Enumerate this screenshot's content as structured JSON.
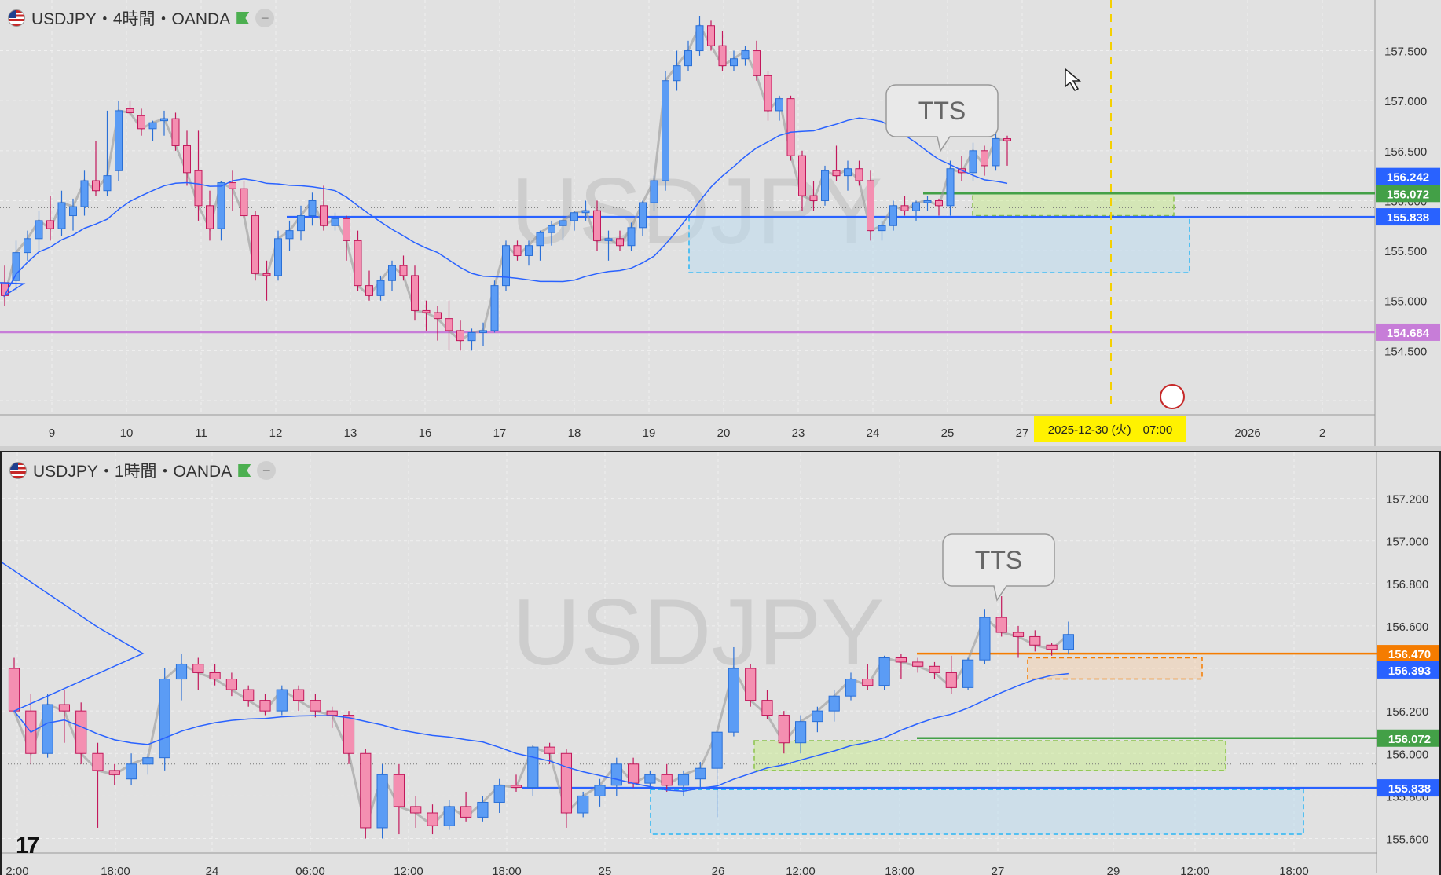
{
  "top": {
    "title": "USDJPY・4時間・OANDA",
    "watermark": "USDJPY",
    "callout": "TTS",
    "crosshair_label": "2025-12-30 (火)　07:00",
    "y_ticks": [
      "157.500",
      "157.000",
      "156.500",
      "156.000",
      "155.500",
      "155.000",
      "154.500"
    ],
    "x_ticks": [
      "9",
      "10",
      "11",
      "12",
      "13",
      "16",
      "17",
      "18",
      "19",
      "20",
      "23",
      "24",
      "25",
      "27",
      "2026",
      "2"
    ],
    "price_labels": [
      {
        "value": "156.242",
        "color": "#2962ff"
      },
      {
        "value": "156.072",
        "color": "#43a047"
      },
      {
        "value": "155.838",
        "color": "#2962ff"
      },
      {
        "value": "154.684",
        "color": "#c77dd8"
      }
    ]
  },
  "bottom": {
    "title": "USDJPY・1時間・OANDA",
    "watermark": "USDJPY",
    "callout": "TTS",
    "y_ticks": [
      "157.200",
      "157.000",
      "156.800",
      "156.600",
      "156.400",
      "156.200",
      "156.000",
      "155.800",
      "155.600"
    ],
    "x_ticks": [
      "2:00",
      "18:00",
      "24",
      "06:00",
      "12:00",
      "18:00",
      "25",
      "26",
      "12:00",
      "18:00",
      "27",
      "29",
      "12:00",
      "18:00"
    ],
    "price_labels": [
      {
        "value": "156.470",
        "color": "#f57c00"
      },
      {
        "value": "156.393",
        "color": "#2962ff"
      },
      {
        "value": "156.072",
        "color": "#43a047"
      },
      {
        "value": "155.838",
        "color": "#2962ff"
      }
    ]
  },
  "chart_data": [
    {
      "type": "candlestick",
      "title": "USDJPY・4時間・OANDA",
      "ylim": [
        154.0,
        157.85
      ],
      "horizontal_lines": [
        {
          "price": 156.072,
          "color": "#43a047"
        },
        {
          "price": 155.838,
          "color": "#2962ff"
        },
        {
          "price": 154.684,
          "color": "#c77dd8"
        }
      ],
      "ohlc": [
        [
          155.18,
          155.35,
          154.95,
          155.05
        ],
        [
          155.2,
          155.6,
          155.1,
          155.48
        ],
        [
          155.48,
          155.7,
          155.4,
          155.62
        ],
        [
          155.62,
          155.9,
          155.5,
          155.8
        ],
        [
          155.8,
          156.05,
          155.6,
          155.72
        ],
        [
          155.72,
          156.1,
          155.65,
          155.98
        ],
        [
          155.85,
          156.02,
          155.7,
          155.94
        ],
        [
          155.94,
          156.3,
          155.85,
          156.2
        ],
        [
          156.2,
          156.6,
          156.05,
          156.1
        ],
        [
          156.1,
          156.9,
          156.05,
          156.25
        ],
        [
          156.3,
          157.0,
          156.2,
          156.9
        ],
        [
          156.92,
          157.0,
          156.85,
          156.88
        ],
        [
          156.85,
          156.92,
          156.65,
          156.72
        ],
        [
          156.72,
          156.8,
          156.6,
          156.78
        ],
        [
          156.8,
          156.9,
          156.65,
          156.82
        ],
        [
          156.82,
          156.88,
          156.5,
          156.55
        ],
        [
          156.55,
          156.7,
          156.15,
          156.28
        ],
        [
          156.3,
          156.7,
          155.8,
          155.95
        ],
        [
          155.95,
          156.1,
          155.6,
          155.72
        ],
        [
          155.72,
          156.2,
          155.6,
          156.18
        ],
        [
          156.18,
          156.3,
          155.9,
          156.12
        ],
        [
          156.12,
          156.2,
          155.82,
          155.85
        ],
        [
          155.85,
          155.9,
          155.2,
          155.27
        ],
        [
          155.27,
          155.4,
          155.0,
          155.25
        ],
        [
          155.25,
          155.7,
          155.2,
          155.62
        ],
        [
          155.62,
          155.8,
          155.5,
          155.7
        ],
        [
          155.7,
          155.95,
          155.6,
          155.85
        ],
        [
          155.85,
          156.08,
          155.75,
          156.0
        ],
        [
          155.95,
          156.15,
          155.7,
          155.75
        ],
        [
          155.75,
          155.88,
          155.7,
          155.82
        ],
        [
          155.82,
          155.85,
          155.4,
          155.6
        ],
        [
          155.6,
          155.7,
          155.1,
          155.15
        ],
        [
          155.15,
          155.3,
          155.0,
          155.05
        ],
        [
          155.05,
          155.25,
          155.0,
          155.2
        ],
        [
          155.2,
          155.4,
          155.1,
          155.35
        ],
        [
          155.35,
          155.45,
          155.2,
          155.25
        ],
        [
          155.25,
          155.35,
          154.8,
          154.9
        ],
        [
          154.9,
          155.0,
          154.7,
          154.88
        ],
        [
          154.88,
          154.95,
          154.6,
          154.82
        ],
        [
          154.82,
          155.0,
          154.5,
          154.7
        ],
        [
          154.7,
          154.8,
          154.5,
          154.6
        ],
        [
          154.6,
          154.72,
          154.5,
          154.68
        ],
        [
          154.68,
          154.78,
          154.55,
          154.7
        ],
        [
          154.7,
          155.2,
          154.68,
          155.15
        ],
        [
          155.15,
          155.6,
          155.1,
          155.55
        ],
        [
          155.55,
          155.6,
          155.4,
          155.45
        ],
        [
          155.45,
          155.6,
          155.35,
          155.55
        ],
        [
          155.55,
          155.7,
          155.4,
          155.68
        ],
        [
          155.68,
          155.8,
          155.55,
          155.75
        ],
        [
          155.75,
          155.85,
          155.6,
          155.8
        ],
        [
          155.8,
          155.9,
          155.7,
          155.88
        ],
        [
          155.88,
          156.0,
          155.8,
          155.9
        ],
        [
          155.9,
          156.0,
          155.5,
          155.6
        ],
        [
          155.6,
          155.7,
          155.4,
          155.62
        ],
        [
          155.62,
          155.7,
          155.5,
          155.55
        ],
        [
          155.55,
          155.78,
          155.5,
          155.73
        ],
        [
          155.73,
          156.0,
          155.65,
          155.98
        ],
        [
          155.98,
          156.25,
          155.9,
          156.2
        ],
        [
          156.2,
          157.3,
          156.1,
          157.2
        ],
        [
          157.2,
          157.5,
          157.1,
          157.35
        ],
        [
          157.35,
          157.6,
          157.3,
          157.5
        ],
        [
          157.5,
          157.85,
          157.45,
          157.75
        ],
        [
          157.75,
          157.8,
          157.5,
          157.55
        ],
        [
          157.55,
          157.7,
          157.3,
          157.35
        ],
        [
          157.35,
          157.5,
          157.3,
          157.42
        ],
        [
          157.42,
          157.55,
          157.35,
          157.5
        ],
        [
          157.5,
          157.6,
          157.2,
          157.25
        ],
        [
          157.25,
          157.3,
          156.8,
          156.9
        ],
        [
          156.9,
          157.05,
          156.8,
          157.02
        ],
        [
          157.02,
          157.05,
          156.4,
          156.45
        ],
        [
          156.45,
          156.5,
          155.9,
          156.05
        ],
        [
          156.05,
          156.2,
          155.9,
          156.0
        ],
        [
          156.0,
          156.35,
          155.95,
          156.3
        ],
        [
          156.3,
          156.55,
          156.2,
          156.25
        ],
        [
          156.25,
          156.4,
          156.1,
          156.32
        ],
        [
          156.32,
          156.4,
          156.15,
          156.2
        ],
        [
          156.2,
          156.3,
          155.6,
          155.7
        ],
        [
          155.7,
          155.8,
          155.6,
          155.75
        ],
        [
          155.75,
          156.0,
          155.7,
          155.95
        ],
        [
          155.95,
          156.05,
          155.85,
          155.9
        ],
        [
          155.9,
          156.0,
          155.8,
          155.98
        ],
        [
          155.98,
          156.05,
          155.9,
          156.0
        ],
        [
          156.0,
          156.02,
          155.85,
          155.95
        ],
        [
          155.95,
          156.4,
          155.85,
          156.32
        ],
        [
          156.32,
          156.45,
          156.2,
          156.28
        ],
        [
          156.28,
          156.58,
          156.2,
          156.5
        ],
        [
          156.5,
          156.55,
          156.25,
          156.35
        ],
        [
          156.35,
          156.75,
          156.3,
          156.62
        ],
        [
          156.62,
          156.65,
          156.35,
          156.6
        ]
      ]
    },
    {
      "type": "candlestick",
      "title": "USDJPY・1時間・OANDA",
      "ylim": [
        155.55,
        157.35
      ],
      "horizontal_lines": [
        {
          "price": 156.47,
          "color": "#f57c00"
        },
        {
          "price": 156.072,
          "color": "#43a047"
        },
        {
          "price": 155.838,
          "color": "#2962ff"
        }
      ],
      "ohlc": [
        [
          156.4,
          156.45,
          156.2,
          156.2
        ],
        [
          156.2,
          156.28,
          155.95,
          156.0
        ],
        [
          156.0,
          156.28,
          155.98,
          156.23
        ],
        [
          156.23,
          156.3,
          156.05,
          156.2
        ],
        [
          156.2,
          156.24,
          155.95,
          156.0
        ],
        [
          156.0,
          156.05,
          155.65,
          155.92
        ],
        [
          155.92,
          155.95,
          155.85,
          155.9
        ],
        [
          155.88,
          156.0,
          155.85,
          155.95
        ],
        [
          155.95,
          156.0,
          155.9,
          155.98
        ],
        [
          155.98,
          156.4,
          155.92,
          156.35
        ],
        [
          156.35,
          156.47,
          156.25,
          156.42
        ],
        [
          156.42,
          156.45,
          156.3,
          156.38
        ],
        [
          156.38,
          156.42,
          156.32,
          156.35
        ],
        [
          156.35,
          156.38,
          156.27,
          156.3
        ],
        [
          156.3,
          156.32,
          156.22,
          156.25
        ],
        [
          156.25,
          156.28,
          156.18,
          156.2
        ],
        [
          156.2,
          156.32,
          156.18,
          156.3
        ],
        [
          156.3,
          156.32,
          156.2,
          156.25
        ],
        [
          156.25,
          156.28,
          156.17,
          156.2
        ],
        [
          156.2,
          156.22,
          156.12,
          156.18
        ],
        [
          156.18,
          156.2,
          155.95,
          156.0
        ],
        [
          156.0,
          156.02,
          155.6,
          155.65
        ],
        [
          155.65,
          155.95,
          155.6,
          155.9
        ],
        [
          155.9,
          155.95,
          155.62,
          155.75
        ],
        [
          155.75,
          155.8,
          155.65,
          155.72
        ],
        [
          155.72,
          155.76,
          155.62,
          155.66
        ],
        [
          155.66,
          155.78,
          155.64,
          155.75
        ],
        [
          155.75,
          155.82,
          155.68,
          155.7
        ],
        [
          155.7,
          155.8,
          155.68,
          155.77
        ],
        [
          155.77,
          155.88,
          155.72,
          155.85
        ],
        [
          155.85,
          155.9,
          155.82,
          155.84
        ],
        [
          155.84,
          156.04,
          155.8,
          156.03
        ],
        [
          156.03,
          156.05,
          155.95,
          156.0
        ],
        [
          156.0,
          156.02,
          155.65,
          155.72
        ],
        [
          155.72,
          155.82,
          155.7,
          155.8
        ],
        [
          155.8,
          155.88,
          155.75,
          155.85
        ],
        [
          155.85,
          155.98,
          155.8,
          155.95
        ],
        [
          155.95,
          155.98,
          155.84,
          155.86
        ],
        [
          155.86,
          155.92,
          155.84,
          155.9
        ],
        [
          155.9,
          155.95,
          155.82,
          155.85
        ],
        [
          155.85,
          155.92,
          155.8,
          155.9
        ],
        [
          155.88,
          155.96,
          155.84,
          155.93
        ],
        [
          155.93,
          156.1,
          155.7,
          156.1
        ],
        [
          156.1,
          156.5,
          156.08,
          156.4
        ],
        [
          156.4,
          156.42,
          156.22,
          156.25
        ],
        [
          156.25,
          156.3,
          156.16,
          156.18
        ],
        [
          156.18,
          156.2,
          156.0,
          156.05
        ],
        [
          156.05,
          156.18,
          156.0,
          156.15
        ],
        [
          156.15,
          156.22,
          156.1,
          156.2
        ],
        [
          156.2,
          156.3,
          156.15,
          156.27
        ],
        [
          156.27,
          156.38,
          156.25,
          156.35
        ],
        [
          156.35,
          156.42,
          156.3,
          156.32
        ],
        [
          156.32,
          156.46,
          156.3,
          156.45
        ],
        [
          156.45,
          156.47,
          156.35,
          156.43
        ],
        [
          156.43,
          156.45,
          156.38,
          156.41
        ],
        [
          156.41,
          156.43,
          156.35,
          156.38
        ],
        [
          156.38,
          156.46,
          156.28,
          156.31
        ],
        [
          156.31,
          156.45,
          156.3,
          156.44
        ],
        [
          156.44,
          156.68,
          156.42,
          156.64
        ],
        [
          156.64,
          156.74,
          156.55,
          156.57
        ],
        [
          156.57,
          156.6,
          156.45,
          156.55
        ],
        [
          156.55,
          156.58,
          156.48,
          156.51
        ],
        [
          156.51,
          156.52,
          156.46,
          156.49
        ],
        [
          156.49,
          156.62,
          156.47,
          156.56
        ]
      ]
    }
  ]
}
